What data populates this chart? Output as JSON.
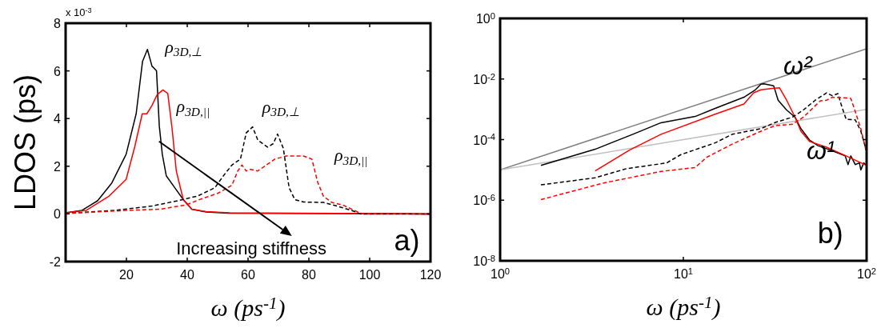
{
  "chart_data": [
    {
      "type": "line",
      "ylabel": "LDOS (ps)",
      "xlabel": "ω (ps$^{-1}$)",
      "xlim": [
        0,
        120
      ],
      "ylim": [
        -2,
        8
      ],
      "xticks": [
        20,
        40,
        60,
        80,
        100,
        120
      ],
      "yticks": [
        -2,
        0,
        2,
        4,
        6,
        8
      ],
      "grid": false,
      "series": [
        {
          "name": "ρ$_{3D,⊥}$",
          "color": "#000000",
          "line_style": "solid",
          "x": [
            0,
            5.4,
            10.5,
            15.2,
            19.9,
            23.2,
            25.3,
            26.9,
            28.4,
            29.9,
            30.8,
            31.8,
            33.1,
            35.9,
            38.7,
            41.5,
            46.2,
            53.8,
            120
          ],
          "values": [
            0.05,
            0.15,
            0.55,
            1.3,
            2.5,
            4.2,
            6.4,
            6.9,
            6.2,
            6.0,
            3.7,
            2.5,
            1.6,
            1.1,
            0.6,
            0.2,
            0.08,
            0.03,
            0.0
          ]
        },
        {
          "name": "ρ$_{3D,||}$",
          "color": "#ff0000",
          "line_style": "solid",
          "x": [
            0,
            6.8,
            14.3,
            19.9,
            22.7,
            25.2,
            26.7,
            28.4,
            30.1,
            32.0,
            33.6,
            35.0,
            36.4,
            38.7,
            41.5,
            46.2,
            53.8,
            120
          ],
          "values": [
            0.05,
            0.15,
            0.75,
            1.45,
            2.8,
            4.2,
            4.2,
            4.55,
            5.0,
            5.2,
            5.05,
            3.6,
            1.8,
            0.6,
            0.2,
            0.1,
            0.05,
            0.0
          ]
        },
        {
          "name": "ρ$_{3D,⊥}$",
          "color": "#000000",
          "line_style": "dashed",
          "x": [
            0,
            16.2,
            28.4,
            36.8,
            43.4,
            49.1,
            51.9,
            54.7,
            57.5,
            59.4,
            61.5,
            63.2,
            66.4,
            68.3,
            69.7,
            71.6,
            73.5,
            75.4,
            78.2,
            84.8,
            89.5,
            94.2,
            97.0,
            120
          ],
          "values": [
            0.02,
            0.15,
            0.33,
            0.55,
            0.75,
            1.1,
            1.6,
            2.05,
            2.3,
            3.4,
            3.65,
            3.1,
            2.8,
            2.95,
            3.35,
            2.75,
            1.1,
            0.6,
            0.5,
            0.48,
            0.32,
            0.14,
            0.0,
            0.0
          ]
        },
        {
          "name": "ρ$_{3D,||}$",
          "color": "#ff0000",
          "line_style": "dashed",
          "x": [
            0,
            20.9,
            31.2,
            39.7,
            44.4,
            50,
            54.7,
            56.6,
            58,
            59.4,
            60.8,
            63.2,
            66,
            68.8,
            72.6,
            78.2,
            81,
            82.9,
            84.8,
            87.6,
            91.4,
            96.1,
            98,
            120
          ],
          "values": [
            0.02,
            0.15,
            0.2,
            0.38,
            0.62,
            0.86,
            1.2,
            1.8,
            2.05,
            1.8,
            1.87,
            1.8,
            2.05,
            2.3,
            2.43,
            2.43,
            2.3,
            1.33,
            0.74,
            0.48,
            0.36,
            0.08,
            0.0,
            0.0
          ]
        }
      ],
      "annotations": [
        "x 10$^{-3}$",
        "Increasing stiffness",
        "a)"
      ]
    },
    {
      "type": "line",
      "xlabel": "ω (ps$^{-1}$)",
      "log": "xy",
      "xlim": [
        1,
        100
      ],
      "ylim": [
        1e-08,
        1
      ],
      "xticks": [
        {
          "value": 1,
          "label": "10$^{0}$"
        },
        {
          "value": 10,
          "label": "10$^{1}$"
        },
        {
          "value": 100,
          "label": "10$^{2}$"
        }
      ],
      "yticks": [
        {
          "value": 1e-08,
          "label": "10$^{-8}$"
        },
        {
          "value": 1e-06,
          "label": "10$^{-6}$"
        },
        {
          "value": 0.0001,
          "label": "10$^{-4}$"
        },
        {
          "value": 0.01,
          "label": "10$^{-2}$"
        },
        {
          "value": 1,
          "label": "10$^{0}$"
        }
      ],
      "grid": false,
      "series": [
        {
          "name": "ω²",
          "color": "#808080",
          "line_style": "solid",
          "x": [
            1,
            100
          ],
          "values": [
            1e-05,
            0.1
          ]
        },
        {
          "name": "ω¹",
          "color": "#c0c0c0",
          "line_style": "solid",
          "x": [
            1,
            100
          ],
          "values": [
            1e-05,
            0.001
          ]
        },
        {
          "color": "#000000",
          "line_style": "solid",
          "x": [
            1.67,
            3.3,
            5.3,
            7.55,
            11.6,
            14.9,
            21.4,
            24.7,
            26.5,
            27.5,
            31.1,
            32.9,
            36.6,
            40.7,
            43.8,
            48.8,
            54.3,
            60.5,
            69.8,
            76.4,
            79.2,
            82,
            86.7,
            91.4,
            93,
            96.4,
            100
          ],
          "values": [
            1.4e-05,
            4.8e-05,
            0.00015,
            0.00036,
            0.00058,
            0.00107,
            0.0025,
            0.0044,
            0.0067,
            0.0069,
            0.006,
            0.002,
            0.00095,
            0.00055,
            0.00023,
            9.7e-05,
            6.3e-05,
            5e-05,
            3.6e-05,
            2.9e-05,
            1.5e-05,
            2.9e-05,
            1.5e-05,
            1.7e-05,
            1e-05,
            1.7e-05,
            1.4e-05
          ]
        },
        {
          "color": "#ff0000",
          "line_style": "solid",
          "x": [
            3.3,
            5.08,
            7.55,
            14.9,
            21.4,
            24.2,
            26.5,
            30.6,
            33.5,
            36.6,
            40.7,
            43.8,
            48.8,
            60.5,
            77.3,
            100
          ],
          "values": [
            9.3e-06,
            4.5e-05,
            0.00015,
            0.00069,
            0.0015,
            0.0035,
            0.0044,
            0.0049,
            0.0051,
            0.002,
            0.00055,
            0.00019,
            8.7e-05,
            5.6e-05,
            2.9e-05,
            1.4e-05
          ]
        },
        {
          "color": "#000000",
          "line_style": "dashed",
          "x": [
            1.67,
            3.3,
            4.9,
            8.1,
            9.7,
            14.9,
            18.5,
            26.5,
            31.8,
            39.4,
            45.2,
            52.5,
            60.5,
            65,
            69.8,
            72.5,
            77.3,
            86.7,
            93,
            100
          ],
          "values": [
            3.2e-06,
            5.5e-06,
            1.1e-05,
            1.7e-05,
            3.2e-05,
            7.8e-05,
            0.00015,
            0.00023,
            0.00037,
            0.00055,
            0.00095,
            0.002,
            0.0035,
            0.0028,
            0.0033,
            0.0015,
            0.00047,
            0.00045,
            0.00019,
            4.1e-05
          ]
        },
        {
          "color": "#ff0000",
          "line_style": "dashed",
          "x": [
            1.67,
            3.67,
            7.55,
            11.6,
            13.4,
            18.5,
            26.5,
            31.8,
            39.4,
            45.2,
            55.9,
            60.5,
            65,
            75.4,
            82,
            86.7,
            93,
            100
          ],
          "values": [
            1.05e-06,
            3.7e-06,
            8.9e-06,
            1.2e-05,
            2.6e-05,
            7.1e-05,
            0.00019,
            0.00029,
            0.00032,
            0.00055,
            0.0019,
            0.002,
            0.0025,
            0.0024,
            0.0023,
            0.00085,
            0.00023,
            3.6e-05
          ]
        }
      ],
      "annotations": [
        "b)"
      ]
    }
  ]
}
